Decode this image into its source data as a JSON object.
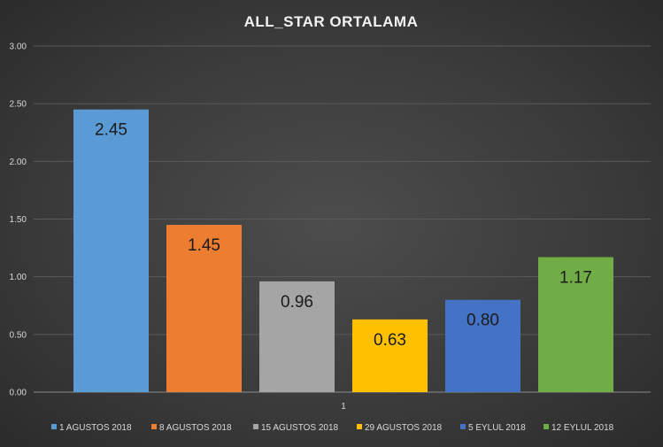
{
  "chart_data": {
    "type": "bar",
    "title": "ALL_STAR  ORTALAMA",
    "categories": [
      "1"
    ],
    "ylim": [
      0,
      3.0
    ],
    "yticks": [
      "0.00",
      "0.50",
      "1.00",
      "1.50",
      "2.00",
      "2.50",
      "3.00"
    ],
    "ytick_values": [
      0,
      0.5,
      1.0,
      1.5,
      2.0,
      2.5,
      3.0
    ],
    "grid": true,
    "legend_position": "bottom",
    "series": [
      {
        "name": "1 AGUSTOS 2018",
        "values": [
          2.45
        ],
        "label": "2.45",
        "color": "#5b9bd5"
      },
      {
        "name": "8 AGUSTOS 2018",
        "values": [
          1.45
        ],
        "label": "1.45",
        "color": "#ed7d31"
      },
      {
        "name": "15 AGUSTOS 2018",
        "values": [
          0.96
        ],
        "label": "0.96",
        "color": "#a5a5a5"
      },
      {
        "name": "29 AGUSTOS 2018",
        "values": [
          0.63
        ],
        "label": "0.63",
        "color": "#ffc000"
      },
      {
        "name": "5 EYLUL 2018",
        "values": [
          0.8
        ],
        "label": "0.80",
        "color": "#4472c4"
      },
      {
        "name": "12 EYLUL 2018",
        "values": [
          1.17
        ],
        "label": "1.17",
        "color": "#70ad47"
      }
    ]
  }
}
